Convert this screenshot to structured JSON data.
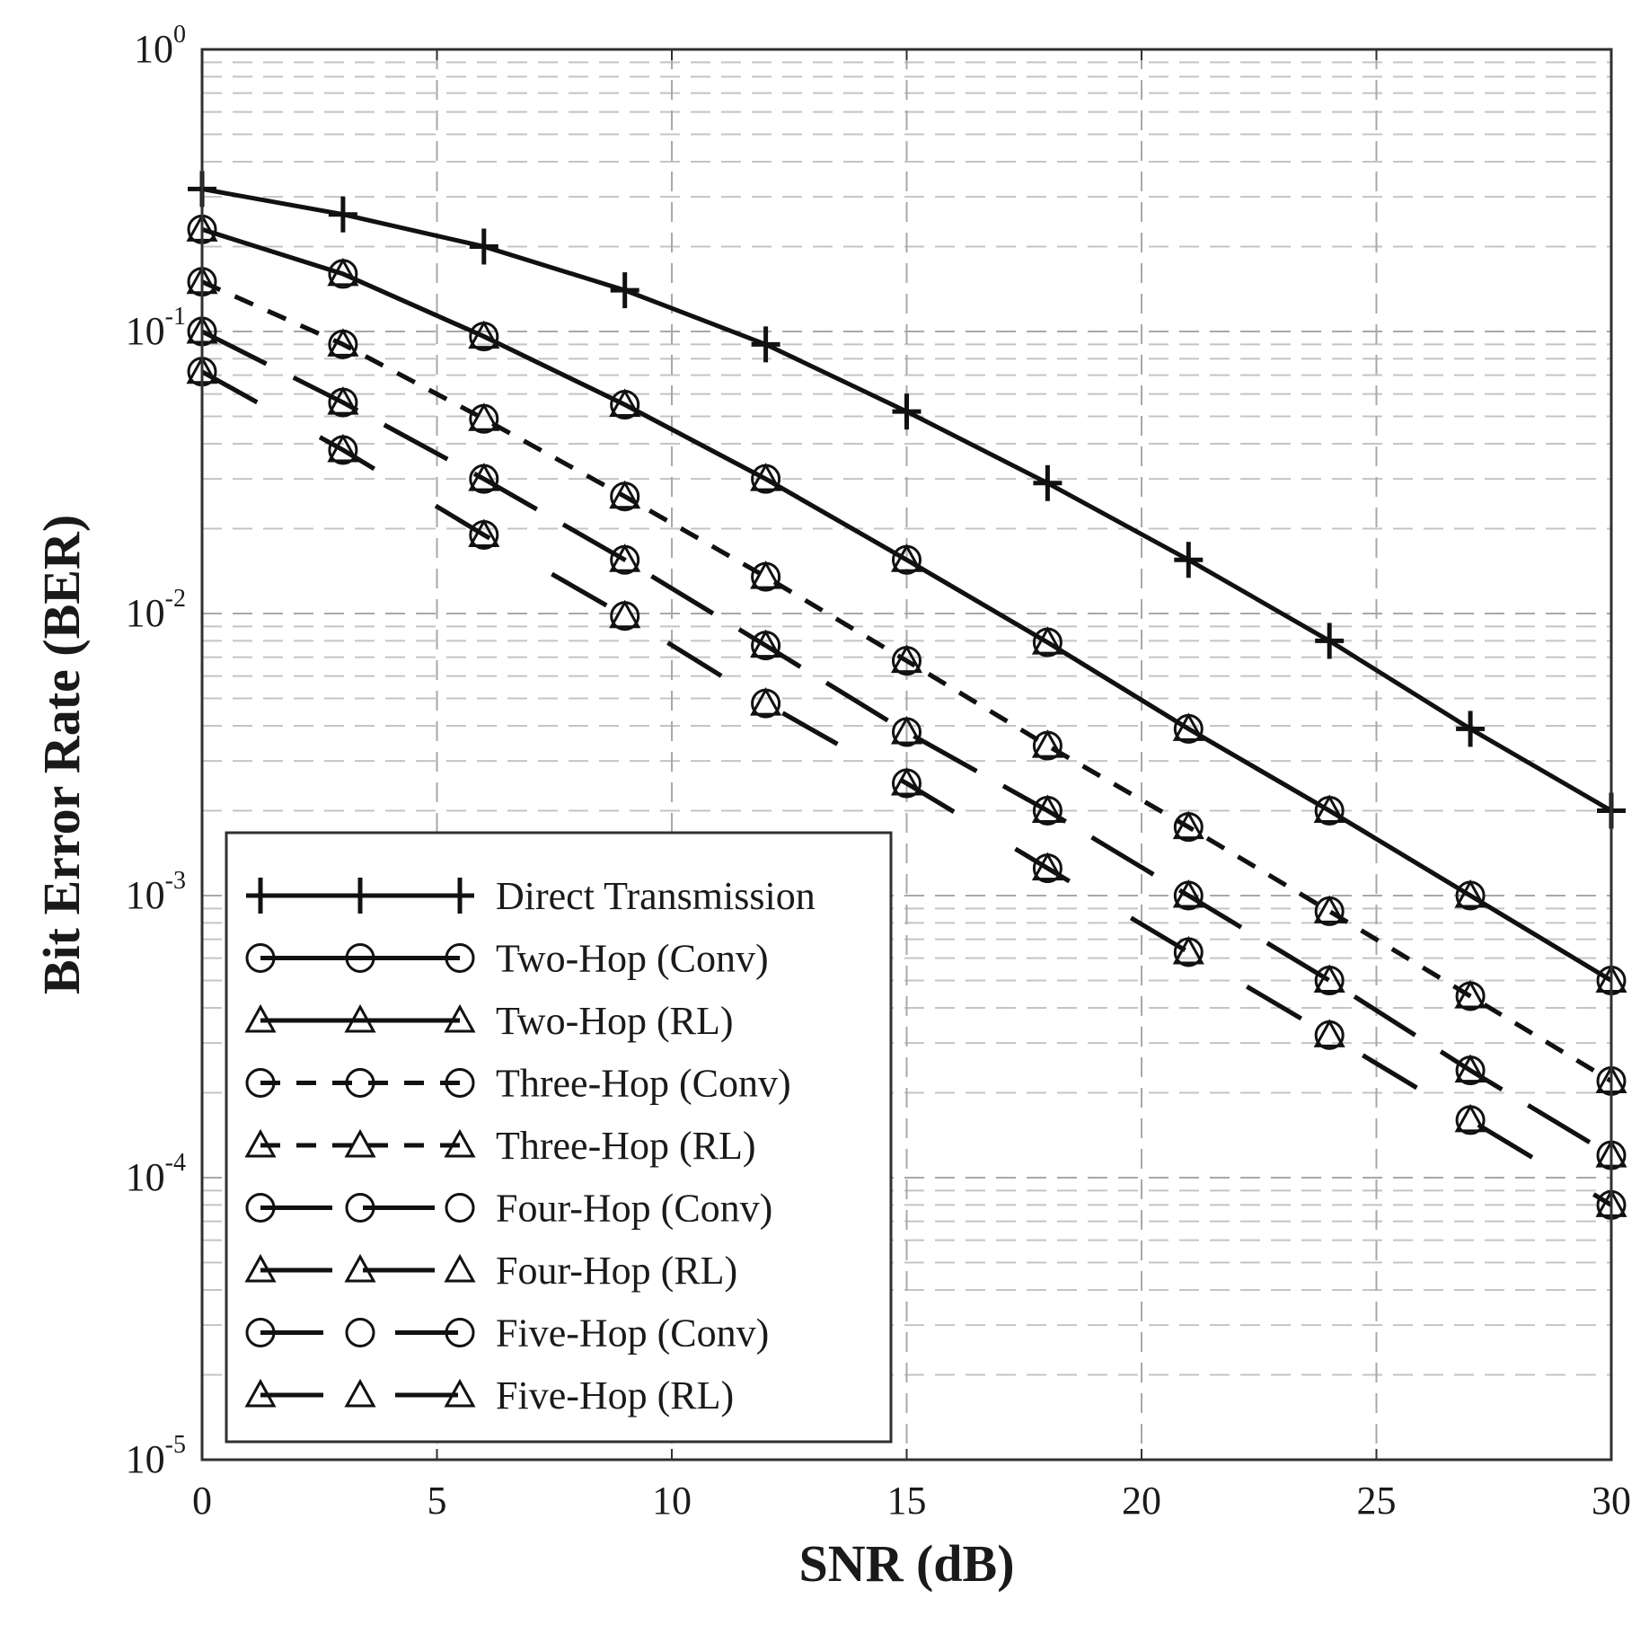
{
  "chart_data": {
    "type": "line",
    "title": "",
    "xlabel": "SNR (dB)",
    "ylabel": "Bit Error Rate (BER)",
    "xlim": [
      0,
      30
    ],
    "ylim": [
      1e-05,
      1
    ],
    "yscale": "log",
    "grid": true,
    "legend_position": "bottom-left",
    "x_ticks": [
      0,
      5,
      10,
      15,
      20,
      25,
      30
    ],
    "x_tick_labels": [
      "0",
      "5",
      "10",
      "15",
      "20",
      "25",
      "30"
    ],
    "y_ticks": [
      {
        "value": 1,
        "base": "10",
        "exp": "0"
      },
      {
        "value": 0.1,
        "base": "10",
        "exp": "-1"
      },
      {
        "value": 0.01,
        "base": "10",
        "exp": "-2"
      },
      {
        "value": 0.001,
        "base": "10",
        "exp": "-3"
      },
      {
        "value": 0.0001,
        "base": "10",
        "exp": "-4"
      },
      {
        "value": 1e-05,
        "base": "10",
        "exp": "-5"
      }
    ],
    "x": [
      0,
      3,
      6,
      9,
      12,
      15,
      18,
      21,
      24,
      27,
      30
    ],
    "series": [
      {
        "name": "Direct Transmission",
        "marker": "plus",
        "dash": "solid",
        "values": [
          0.32,
          0.26,
          0.2,
          0.14,
          0.09,
          0.052,
          0.029,
          0.0155,
          0.008,
          0.0039,
          0.002
        ]
      },
      {
        "name": "Two-Hop (Conv)",
        "marker": "circle",
        "dash": "solid",
        "values": [
          0.23,
          0.16,
          0.096,
          0.055,
          0.03,
          0.0155,
          0.0079,
          0.0039,
          0.002,
          0.001,
          0.0005
        ]
      },
      {
        "name": "Two-Hop (RL)",
        "marker": "triangle",
        "dash": "solid",
        "values": [
          0.23,
          0.16,
          0.096,
          0.055,
          0.03,
          0.0155,
          0.0079,
          0.0039,
          0.002,
          0.001,
          0.0005
        ]
      },
      {
        "name": "Three-Hop (Conv)",
        "marker": "circle",
        "dash": "dash",
        "values": [
          0.15,
          0.09,
          0.049,
          0.026,
          0.0135,
          0.0068,
          0.0034,
          0.00175,
          0.00088,
          0.00044,
          0.00022
        ]
      },
      {
        "name": "Three-Hop (RL)",
        "marker": "triangle",
        "dash": "dash",
        "values": [
          0.15,
          0.09,
          0.049,
          0.026,
          0.0135,
          0.0068,
          0.0034,
          0.00175,
          0.00088,
          0.00044,
          0.00022
        ]
      },
      {
        "name": "Four-Hop (Conv)",
        "marker": "circle",
        "dash": "longdash",
        "values": [
          0.1,
          0.056,
          0.03,
          0.0155,
          0.0077,
          0.0038,
          0.002,
          0.001,
          0.0005,
          0.00024,
          0.00012
        ]
      },
      {
        "name": "Four-Hop (RL)",
        "marker": "triangle",
        "dash": "longdash",
        "values": [
          0.1,
          0.056,
          0.03,
          0.0155,
          0.0077,
          0.0038,
          0.002,
          0.001,
          0.0005,
          0.00024,
          0.00012
        ]
      },
      {
        "name": "Five-Hop (Conv)",
        "marker": "circle",
        "dash": "dashgap",
        "values": [
          0.072,
          0.038,
          0.019,
          0.0098,
          0.0048,
          0.0025,
          0.00125,
          0.00063,
          0.00032,
          0.00016,
          8e-05
        ]
      },
      {
        "name": "Five-Hop (RL)",
        "marker": "triangle",
        "dash": "dashgap",
        "values": [
          0.072,
          0.038,
          0.019,
          0.0098,
          0.0048,
          0.0025,
          0.00125,
          0.00063,
          0.00032,
          0.00016,
          8e-05
        ]
      }
    ]
  }
}
